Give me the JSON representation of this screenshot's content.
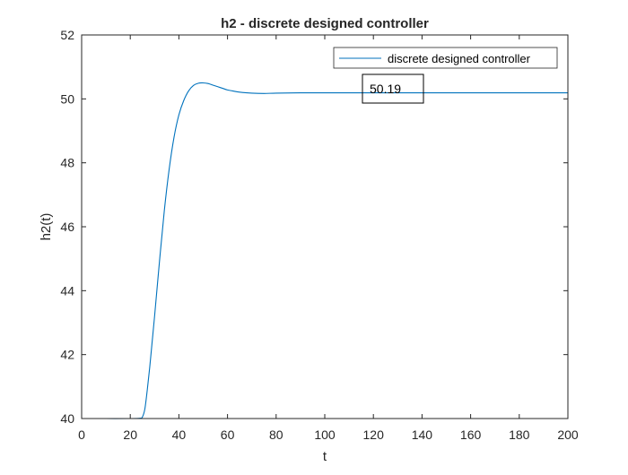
{
  "chart_data": {
    "type": "line",
    "title": "h2 - discrete designed controller",
    "xlabel": "t",
    "ylabel": "h2(t)",
    "xlim": [
      0,
      200
    ],
    "ylim": [
      40,
      52
    ],
    "xticks": [
      "0",
      "20",
      "40",
      "60",
      "80",
      "100",
      "120",
      "140",
      "160",
      "180",
      "200"
    ],
    "yticks": [
      "40",
      "42",
      "44",
      "46",
      "48",
      "50",
      "52"
    ],
    "grid": false,
    "legend_position": "top-right",
    "series": [
      {
        "name": "discrete designed controller",
        "color": "#0072BD",
        "x": [
          0,
          10,
          20,
          24,
          25,
          26,
          27,
          28,
          29,
          30,
          32,
          34,
          36,
          38,
          40,
          42,
          44,
          46,
          48,
          50,
          52,
          54,
          56,
          58,
          60,
          62,
          65,
          70,
          75,
          80,
          90,
          100,
          120,
          150,
          200
        ],
        "y": [
          40.0,
          40.0,
          40.0,
          40.01,
          40.05,
          40.3,
          40.9,
          41.6,
          42.4,
          43.2,
          44.9,
          46.5,
          47.8,
          48.8,
          49.5,
          49.95,
          50.25,
          50.42,
          50.49,
          50.5,
          50.48,
          50.43,
          50.38,
          50.33,
          50.28,
          50.25,
          50.21,
          50.18,
          50.17,
          50.18,
          50.19,
          50.19,
          50.19,
          50.19,
          50.19
        ]
      }
    ],
    "annotations": [
      {
        "text": "50.19"
      }
    ]
  }
}
